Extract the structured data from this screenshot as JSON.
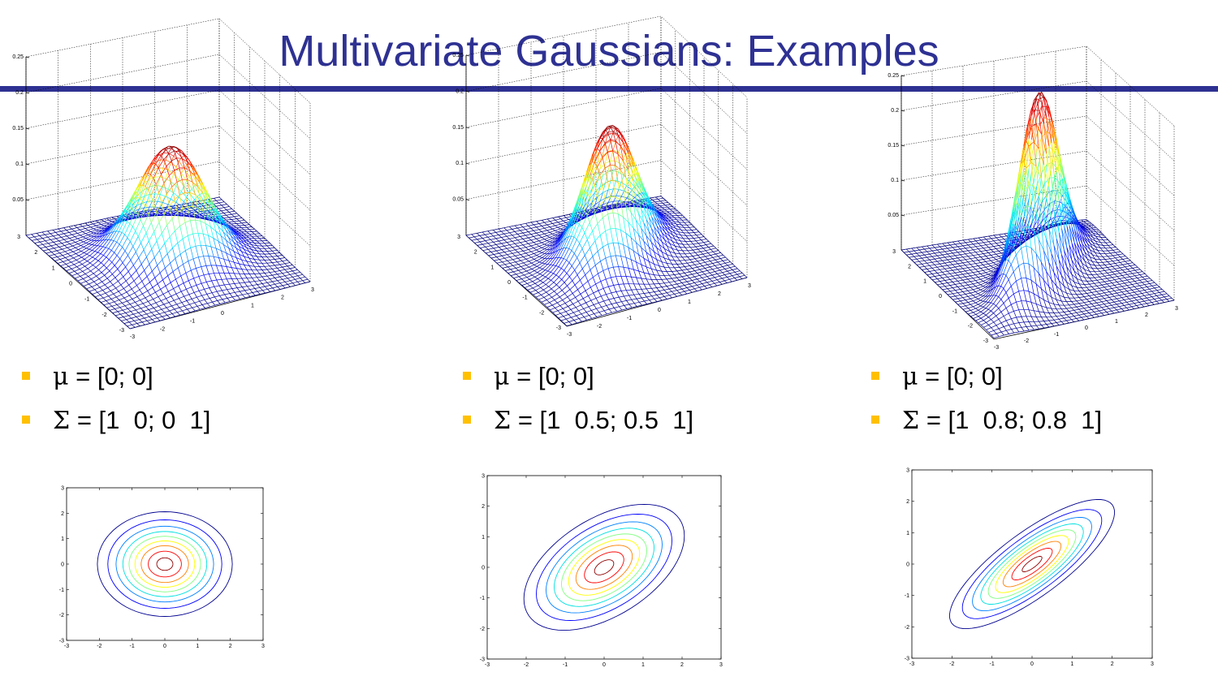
{
  "slide": {
    "title": "Multivariate Gaussians: Examples"
  },
  "colors": {
    "title": "#2e3192",
    "rule": "#2e3192",
    "bullet": "#ffc000"
  },
  "chart_data": [
    {
      "type": "surface",
      "mean": [
        0,
        0
      ],
      "covariance": [
        [
          1,
          0
        ],
        [
          0,
          1
        ]
      ],
      "x_ticks": [
        "-3",
        "-2",
        "-1",
        "0",
        "1",
        "2",
        "3"
      ],
      "y_ticks": [
        "-3",
        "-2",
        "-1",
        "0",
        "1",
        "2",
        "3"
      ],
      "z_ticks": [
        "0.05",
        "0.1",
        "0.15",
        "0.2",
        "0.25"
      ],
      "xlim": [
        -3,
        3
      ],
      "ylim": [
        -3,
        3
      ],
      "zlim": [
        0,
        0.25
      ],
      "grid": true
    },
    {
      "type": "surface",
      "mean": [
        0,
        0
      ],
      "covariance": [
        [
          1,
          0.5
        ],
        [
          0.5,
          1
        ]
      ],
      "x_ticks": [
        "-3",
        "-2",
        "-1",
        "0",
        "1",
        "2",
        "3"
      ],
      "y_ticks": [
        "-3",
        "-2",
        "-1",
        "0",
        "1",
        "2",
        "3"
      ],
      "z_ticks": [
        "0.05",
        "0.1",
        "0.15",
        "0.2",
        "0.25"
      ],
      "xlim": [
        -3,
        3
      ],
      "ylim": [
        -3,
        3
      ],
      "zlim": [
        0,
        0.25
      ],
      "grid": true
    },
    {
      "type": "surface",
      "mean": [
        0,
        0
      ],
      "covariance": [
        [
          1,
          0.8
        ],
        [
          0.8,
          1
        ]
      ],
      "x_ticks": [
        "-3",
        "-2",
        "-1",
        "0",
        "1",
        "2",
        "3"
      ],
      "y_ticks": [
        "-3",
        "-2",
        "-1",
        "0",
        "1",
        "2",
        "3"
      ],
      "z_ticks": [
        "0.05",
        "0.1",
        "0.15",
        "0.2",
        "0.25"
      ],
      "xlim": [
        -3,
        3
      ],
      "ylim": [
        -3,
        3
      ],
      "zlim": [
        0,
        0.25
      ],
      "grid": true
    },
    {
      "type": "contour",
      "mean": [
        0,
        0
      ],
      "covariance": [
        [
          1,
          0
        ],
        [
          0,
          1
        ]
      ],
      "x_ticks": [
        "-3",
        "-2",
        "-1",
        "0",
        "1",
        "2",
        "3"
      ],
      "y_ticks": [
        "-3",
        "-2",
        "-1",
        "0",
        "1",
        "2",
        "3"
      ],
      "xlim": [
        -3,
        3
      ],
      "ylim": [
        -3,
        3
      ],
      "grid": false
    },
    {
      "type": "contour",
      "mean": [
        0,
        0
      ],
      "covariance": [
        [
          1,
          0.5
        ],
        [
          0.5,
          1
        ]
      ],
      "x_ticks": [
        "-3",
        "-2",
        "-1",
        "0",
        "1",
        "2",
        "3"
      ],
      "y_ticks": [
        "-3",
        "-2",
        "-1",
        "0",
        "1",
        "2",
        "3"
      ],
      "xlim": [
        -3,
        3
      ],
      "ylim": [
        -3,
        3
      ],
      "grid": false
    },
    {
      "type": "contour",
      "mean": [
        0,
        0
      ],
      "covariance": [
        [
          1,
          0.8
        ],
        [
          0.8,
          1
        ]
      ],
      "x_ticks": [
        "-3",
        "-2",
        "-1",
        "0",
        "1",
        "2",
        "3"
      ],
      "y_ticks": [
        "-3",
        "-2",
        "-1",
        "0",
        "1",
        "2",
        "3"
      ],
      "xlim": [
        -3,
        3
      ],
      "ylim": [
        -3,
        3
      ],
      "grid": false
    }
  ],
  "examples": [
    {
      "mu_symbol": "μ",
      "mu_text": " = [0; 0]",
      "sigma_symbol": "Σ",
      "sigma_text": " = [1  0; 0  1]"
    },
    {
      "mu_symbol": "μ",
      "mu_text": " = [0; 0]",
      "sigma_symbol": "Σ",
      "sigma_text": " = [1  0.5; 0.5  1]"
    },
    {
      "mu_symbol": "μ",
      "mu_text": " = [0; 0]",
      "sigma_symbol": "Σ",
      "sigma_text": " = [1  0.8; 0.8  1]"
    }
  ]
}
